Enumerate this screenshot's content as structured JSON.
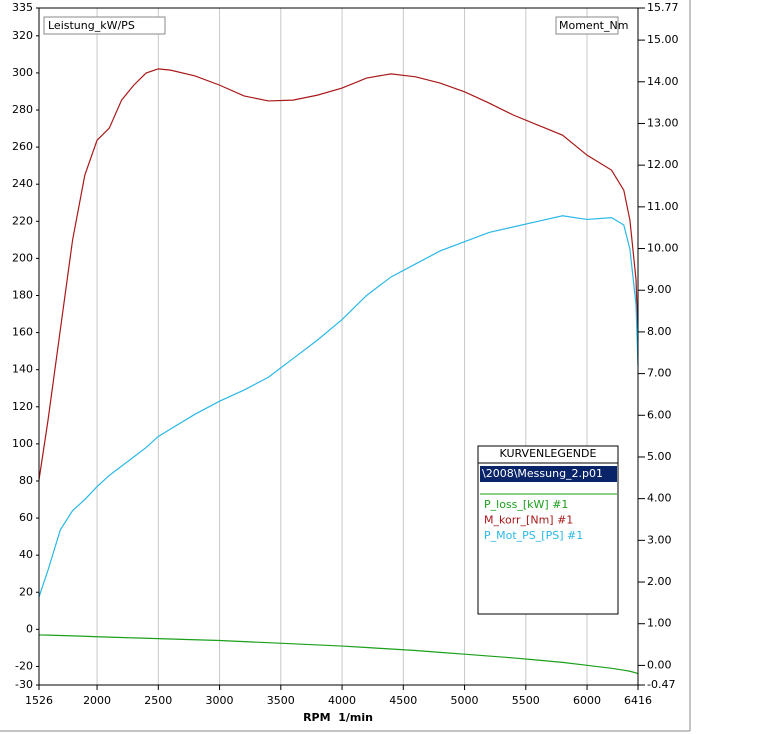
{
  "chart_data": {
    "type": "line",
    "y_axis_label": "Leistung_kW/PS",
    "y2_axis_label": "Moment_Nm",
    "x_axis_label": "RPM  1/min",
    "legend_title": "KURVENLEGENDE",
    "legend_file": "\\2008\\Messung_2.p01",
    "x": [
      1526,
      1600,
      1700,
      1800,
      1900,
      2000,
      2100,
      2200,
      2300,
      2400,
      2500,
      2600,
      2800,
      3000,
      3200,
      3400,
      3600,
      3800,
      4000,
      4200,
      4400,
      4600,
      4800,
      5000,
      5200,
      5400,
      5600,
      5800,
      6000,
      6200,
      6300,
      6350,
      6400,
      6416
    ],
    "series": [
      {
        "name": "P_loss_[kW] #1",
        "color": "#1aa01a",
        "axis": "y",
        "values": [
          -3,
          -3.1,
          -3.3,
          -3.5,
          -3.7,
          -4,
          -4.2,
          -4.4,
          -4.6,
          -4.8,
          -5,
          -5.2,
          -5.6,
          -6,
          -6.6,
          -7.2,
          -7.8,
          -8.4,
          -9,
          -9.8,
          -10.6,
          -11.4,
          -12.4,
          -13.4,
          -14.4,
          -15.4,
          -16.6,
          -17.8,
          -19.4,
          -21,
          -22,
          -22.6,
          -23.5,
          -24
        ]
      },
      {
        "name": "M_korr_[Nm] #1",
        "color": "#a81818",
        "axis": "y2",
        "values": [
          4.45,
          5.89,
          8.05,
          10.2,
          11.76,
          12.6,
          12.89,
          13.56,
          13.92,
          14.21,
          14.31,
          14.28,
          14.14,
          13.92,
          13.66,
          13.54,
          13.56,
          13.68,
          13.85,
          14.09,
          14.19,
          14.12,
          13.97,
          13.76,
          13.49,
          13.2,
          12.96,
          12.72,
          12.24,
          11.88,
          11.4,
          10.68,
          9.25,
          7.81
        ]
      },
      {
        "name": "P_Mot_PS_[PS] #1",
        "color": "#2ab8e6",
        "axis": "y",
        "values": [
          17.5,
          32,
          53.6,
          64,
          70,
          77,
          83,
          88,
          93,
          98,
          104,
          108,
          116,
          123,
          129,
          136,
          146,
          156,
          167,
          180,
          190,
          197,
          204,
          209,
          214,
          217,
          220,
          223,
          221,
          222,
          218,
          205,
          175,
          142
        ]
      }
    ],
    "xlim": [
      1526,
      6416
    ],
    "xticks": [
      1526,
      2000,
      2500,
      3000,
      3500,
      4000,
      4500,
      5000,
      5500,
      6000,
      6416
    ],
    "ylim": [
      -30,
      335
    ],
    "yticks": [
      335,
      320,
      300,
      280,
      260,
      240,
      220,
      200,
      180,
      160,
      140,
      120,
      100,
      80,
      60,
      40,
      20,
      0,
      -20,
      -30
    ],
    "y2lim": [
      -0.47,
      15.77
    ],
    "y2ticks": [
      {
        "value": 15.77,
        "label": "15.77"
      },
      {
        "value": 15,
        "label": "15.00"
      },
      {
        "value": 14,
        "label": "14.00"
      },
      {
        "value": 13,
        "label": "13.00"
      },
      {
        "value": 12,
        "label": "12.00"
      },
      {
        "value": 11,
        "label": "11.00"
      },
      {
        "value": 10,
        "label": "10.00"
      },
      {
        "value": 9,
        "label": "9.00"
      },
      {
        "value": 8,
        "label": "8.00"
      },
      {
        "value": 7,
        "label": "7.00"
      },
      {
        "value": 6,
        "label": "6.00"
      },
      {
        "value": 5,
        "label": "5.00"
      },
      {
        "value": 4,
        "label": "4.00"
      },
      {
        "value": 3,
        "label": "3.00"
      },
      {
        "value": 2,
        "label": "2.00"
      },
      {
        "value": 1,
        "label": "1.00"
      },
      {
        "value": 0,
        "label": "0.00"
      },
      {
        "value": -0.47,
        "label": "-0.47"
      }
    ],
    "grid": "x"
  }
}
